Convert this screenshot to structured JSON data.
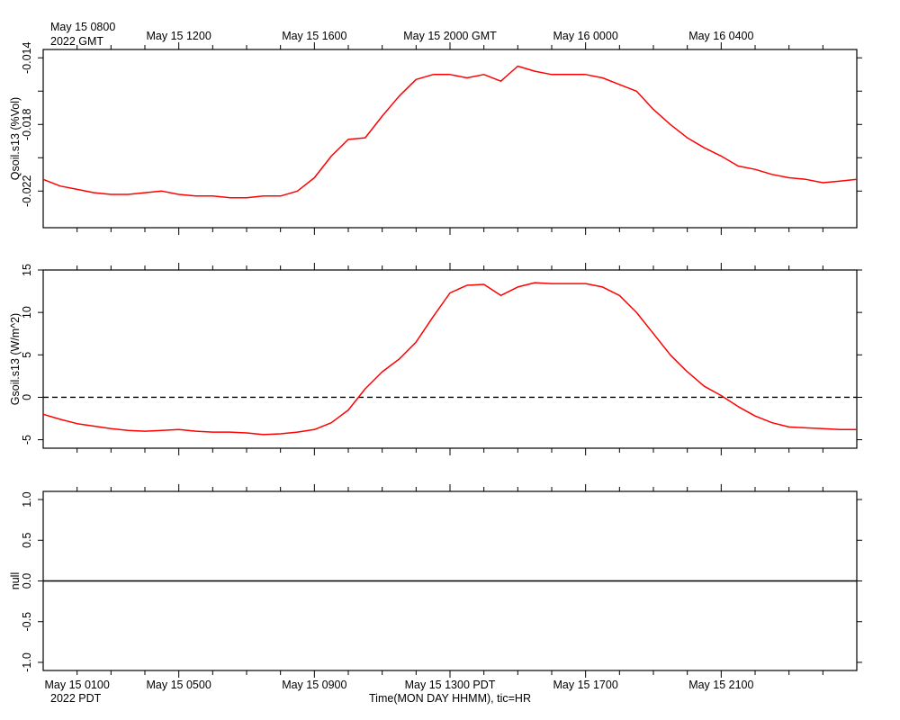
{
  "header": {
    "gmt_first_label": "May 15 0800",
    "gmt_year_label": "2022 GMT"
  },
  "footer": {
    "pdt_first_label": "May 15 0100",
    "pdt_year_label": "2022 PDT",
    "xlabel": "Time(MON DAY HHMM), tic=HR"
  },
  "colors": {
    "series": "#ff0000",
    "axis": "#000000",
    "zero_line": "#000000"
  },
  "chart_data": [
    {
      "type": "line",
      "title": "",
      "ylabel": "Qsoil.s13 (%Vol)",
      "ylim": [
        -0.0242,
        -0.0135
      ],
      "yticks": [
        -0.022,
        -0.02,
        -0.018,
        -0.016,
        -0.014
      ],
      "yticklabels": [
        "-0.022",
        "",
        "-0.018",
        "",
        "-0.014"
      ],
      "xlim": [
        0,
        24
      ],
      "x_axis_unit": "hours since May 15 0800 GMT (May 15 0100 PDT)",
      "top_tick_labels": [
        {
          "x": 4,
          "label": "May 15 1200"
        },
        {
          "x": 8,
          "label": "May 15 1600"
        },
        {
          "x": 12,
          "label": "May 15 2000 GMT"
        },
        {
          "x": 16,
          "label": "May 16 0000"
        },
        {
          "x": 20,
          "label": "May 16 0400"
        }
      ],
      "series": [
        {
          "name": "",
          "x": [
            0,
            0.5,
            1,
            1.5,
            2,
            2.5,
            3,
            3.5,
            4,
            4.5,
            5,
            5.5,
            6,
            6.5,
            7,
            7.5,
            8,
            8.5,
            9,
            9.5,
            10,
            10.5,
            11,
            11.5,
            12,
            12.5,
            13,
            13.5,
            14,
            14.5,
            15,
            15.5,
            16,
            16.5,
            17,
            17.5,
            18,
            18.5,
            19,
            19.5,
            20,
            20.5,
            21,
            21.5,
            22,
            22.5,
            23,
            23.5,
            24
          ],
          "values": [
            -0.0213,
            -0.0217,
            -0.0219,
            -0.0221,
            -0.0222,
            -0.0222,
            -0.0221,
            -0.022,
            -0.0222,
            -0.0223,
            -0.0223,
            -0.0224,
            -0.0224,
            -0.0223,
            -0.0223,
            -0.022,
            -0.0212,
            -0.0199,
            -0.0189,
            -0.0188,
            -0.0175,
            -0.0163,
            -0.0153,
            -0.015,
            -0.015,
            -0.0152,
            -0.015,
            -0.0154,
            -0.0145,
            -0.0148,
            -0.015,
            -0.015,
            -0.015,
            -0.0152,
            -0.0156,
            -0.016,
            -0.0171,
            -0.018,
            -0.0188,
            -0.0194,
            -0.0199,
            -0.0205,
            -0.0207,
            -0.021,
            -0.0212,
            -0.0213,
            -0.0215,
            -0.0214,
            -0.0213
          ]
        }
      ]
    },
    {
      "type": "line",
      "title": "",
      "ylabel": "Gsoil.s13 (W/m^2)",
      "ylim": [
        -6,
        15
      ],
      "yticks": [
        -5,
        0,
        5,
        10,
        15
      ],
      "yticklabels": [
        "-5",
        "0",
        "5",
        "10",
        "15"
      ],
      "xlim": [
        0,
        24
      ],
      "zero_line": true,
      "series": [
        {
          "name": "",
          "x": [
            0,
            0.5,
            1,
            1.5,
            2,
            2.5,
            3,
            3.5,
            4,
            4.5,
            5,
            5.5,
            6,
            6.5,
            7,
            7.5,
            8,
            8.5,
            9,
            9.5,
            10,
            10.5,
            11,
            11.5,
            12,
            12.5,
            13,
            13.5,
            14,
            14.5,
            15,
            15.5,
            16,
            16.5,
            17,
            17.5,
            18,
            18.5,
            19,
            19.5,
            20,
            20.5,
            21,
            21.5,
            22,
            22.5,
            23,
            23.5,
            24
          ],
          "values": [
            -2.0,
            -2.6,
            -3.1,
            -3.4,
            -3.7,
            -3.9,
            -4.0,
            -3.9,
            -3.8,
            -4.0,
            -4.1,
            -4.1,
            -4.2,
            -4.4,
            -4.3,
            -4.1,
            -3.8,
            -3.0,
            -1.5,
            1.0,
            3.0,
            4.5,
            6.5,
            9.5,
            12.3,
            13.2,
            13.3,
            12.0,
            13.0,
            13.5,
            13.4,
            13.4,
            13.4,
            13.0,
            12.0,
            10.0,
            7.5,
            5.0,
            3.0,
            1.3,
            0.2,
            -1.1,
            -2.2,
            -3.0,
            -3.5,
            -3.6,
            -3.7,
            -3.8,
            -3.8
          ]
        }
      ]
    },
    {
      "type": "line",
      "title": "",
      "ylabel": "null",
      "ylim": [
        -1.1,
        1.1
      ],
      "yticks": [
        -1.0,
        -0.5,
        0.0,
        0.5,
        1.0
      ],
      "yticklabels": [
        "-1.0",
        "-0.5",
        "0.0",
        "0.5",
        "1.0"
      ],
      "xlim": [
        0,
        24
      ],
      "bottom_tick_labels": [
        {
          "x": 4,
          "label": "May 15 0500"
        },
        {
          "x": 8,
          "label": "May 15 0900"
        },
        {
          "x": 12,
          "label": "May 15 1300 PDT"
        },
        {
          "x": 16,
          "label": "May 15 1700"
        },
        {
          "x": 20,
          "label": "May 15 2100"
        }
      ],
      "series": [
        {
          "name": "",
          "x": [
            0,
            24
          ],
          "values": [
            0,
            0
          ]
        }
      ]
    }
  ]
}
